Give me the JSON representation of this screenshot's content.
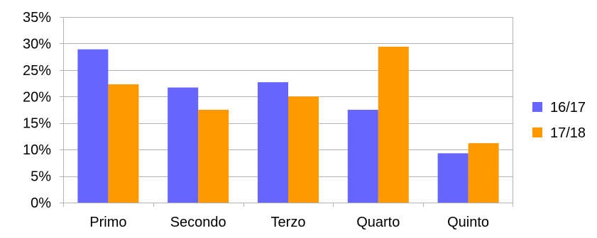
{
  "chart_data": {
    "type": "bar",
    "categories": [
      "Primo",
      "Secondo",
      "Terzo",
      "Quarto",
      "Quinto"
    ],
    "series": [
      {
        "name": "16/17",
        "color": "#6666ff",
        "values": [
          28.9,
          21.7,
          22.7,
          17.5,
          9.3
        ]
      },
      {
        "name": "17/18",
        "color": "#ff9900",
        "values": [
          22.3,
          17.5,
          20.0,
          29.4,
          11.2
        ]
      }
    ],
    "ylim": [
      0,
      35
    ],
    "y_ticks": [
      "0%",
      "5%",
      "10%",
      "15%",
      "20%",
      "25%",
      "30%",
      "35%"
    ],
    "y_tick_values": [
      0,
      5,
      10,
      15,
      20,
      25,
      30,
      35
    ],
    "grid": true,
    "gridline_color": "#b3b3b3",
    "legend_position": "right",
    "title": "",
    "xlabel": "",
    "ylabel": ""
  }
}
